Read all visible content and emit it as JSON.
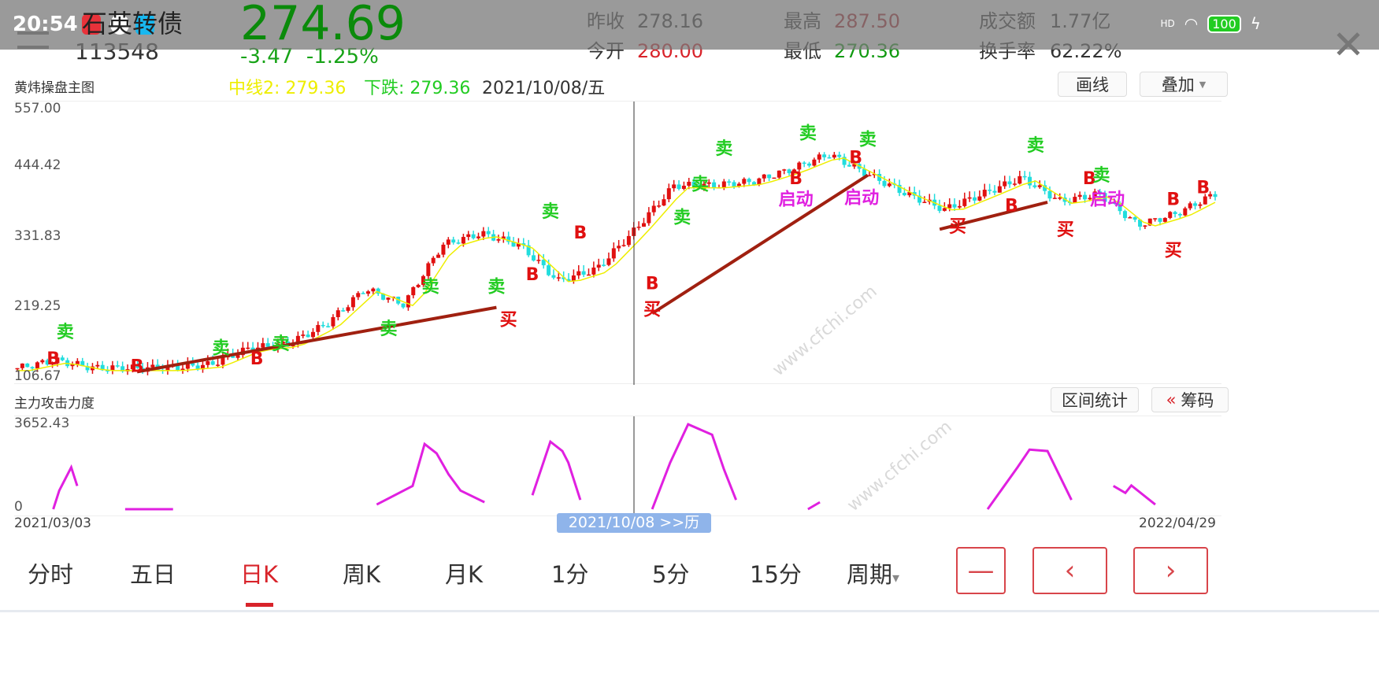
{
  "status_bar": {
    "time": "20:54",
    "battery": "100",
    "signal": "HD"
  },
  "header": {
    "name": "石英转债",
    "code": "113548",
    "price": "274.69",
    "change": "-3.47",
    "change_pct": "-1.25%",
    "stats": [
      {
        "label": "昨收",
        "value": "278.16",
        "color": "#333333"
      },
      {
        "label": "今开",
        "value": "280.00",
        "color": "#d8232a"
      },
      {
        "label": "最高",
        "value": "287.50",
        "color": "#b0202a"
      },
      {
        "label": "最低",
        "value": "270.36",
        "color": "#119a11"
      },
      {
        "label": "成交额",
        "value": "1.77亿",
        "color": "#333333"
      },
      {
        "label": "换手率",
        "value": "62.22%",
        "color": "#333333"
      }
    ]
  },
  "main_chart": {
    "title": "黄炜操盘主图",
    "legend_mid": "中线2: 279.36",
    "legend_down": "下跌: 279.36",
    "cursor_date": "2021/10/08/五",
    "draw_button": "画线",
    "overlay_button": "叠加",
    "y_ticks": [
      "557.00",
      "444.42",
      "331.83",
      "219.25",
      "106.67"
    ]
  },
  "sub_chart": {
    "title": "主力攻击力度",
    "stats_button": "区间统计",
    "chips_button": "筹码",
    "y_ticks": [
      "3652.43",
      "0"
    ]
  },
  "dates": {
    "start": "2021/03/03",
    "end": "2022/04/29",
    "cursor": "2021/10/08 >>历"
  },
  "tabs": [
    {
      "label": "分时"
    },
    {
      "label": "五日"
    },
    {
      "label": "日K",
      "active": true
    },
    {
      "label": "周K"
    },
    {
      "label": "月K"
    },
    {
      "label": "1分"
    },
    {
      "label": "5分"
    },
    {
      "label": "15分"
    },
    {
      "label": "周期"
    }
  ],
  "nav_buttons": [
    {
      "icon": "minus-icon",
      "label": "—"
    },
    {
      "icon": "chevron-left-icon",
      "label": "‹"
    },
    {
      "icon": "chevron-right-icon",
      "label": "›"
    }
  ],
  "watermark": "www.cfchi.com",
  "colors": {
    "up": "#e01010",
    "down": "#22dddd",
    "accent": "#d8232a",
    "signal_green": "#22cc22",
    "signal_magenta": "#e020e0",
    "trend": "#a02010"
  },
  "chart_data": {
    "type": "candlestick",
    "ylim": [
      106.67,
      557.0
    ],
    "x_range": [
      "2021/03/03",
      "2022/04/29"
    ],
    "cursor_date": "2021/10/08",
    "close_path": [
      124,
      137,
      124,
      124,
      124,
      130,
      157,
      164,
      197,
      256,
      230,
      329,
      348,
      329,
      269,
      289,
      355,
      428,
      428,
      434,
      454,
      480,
      447,
      414,
      388,
      414,
      441,
      401,
      414,
      362,
      381,
      414
    ],
    "markers": [
      {
        "t": 0.03,
        "p": 130,
        "text": "B"
      },
      {
        "t": 0.04,
        "p": 175,
        "text": "卖"
      },
      {
        "t": 0.1,
        "p": 118,
        "text": "B"
      },
      {
        "t": 0.2,
        "p": 130,
        "text": "B"
      },
      {
        "t": 0.17,
        "p": 148,
        "text": "卖"
      },
      {
        "t": 0.22,
        "p": 155,
        "text": "卖"
      },
      {
        "t": 0.31,
        "p": 180,
        "text": "卖"
      },
      {
        "t": 0.345,
        "p": 250,
        "text": "卖"
      },
      {
        "t": 0.4,
        "p": 250,
        "text": "卖"
      },
      {
        "t": 0.41,
        "p": 195,
        "text": "买"
      },
      {
        "t": 0.43,
        "p": 270,
        "text": "B"
      },
      {
        "t": 0.445,
        "p": 375,
        "text": "卖"
      },
      {
        "t": 0.47,
        "p": 340,
        "text": "B"
      },
      {
        "t": 0.53,
        "p": 212,
        "text": "买"
      },
      {
        "t": 0.53,
        "p": 255,
        "text": "B"
      },
      {
        "t": 0.555,
        "p": 365,
        "text": "卖"
      },
      {
        "t": 0.57,
        "p": 420,
        "text": "卖"
      },
      {
        "t": 0.59,
        "p": 480,
        "text": "卖"
      },
      {
        "t": 0.66,
        "p": 505,
        "text": "卖"
      },
      {
        "t": 0.65,
        "p": 430,
        "text": "B"
      },
      {
        "t": 0.65,
        "p": 395,
        "text": "启动"
      },
      {
        "t": 0.705,
        "p": 398,
        "text": "启动"
      },
      {
        "t": 0.71,
        "p": 495,
        "text": "卖"
      },
      {
        "t": 0.7,
        "p": 465,
        "text": "B"
      },
      {
        "t": 0.785,
        "p": 350,
        "text": "买"
      },
      {
        "t": 0.83,
        "p": 385,
        "text": "B"
      },
      {
        "t": 0.85,
        "p": 485,
        "text": "卖"
      },
      {
        "t": 0.875,
        "p": 345,
        "text": "买"
      },
      {
        "t": 0.895,
        "p": 430,
        "text": "B"
      },
      {
        "t": 0.91,
        "p": 395,
        "text": "启动"
      },
      {
        "t": 0.905,
        "p": 435,
        "text": "卖"
      },
      {
        "t": 0.965,
        "p": 310,
        "text": "买"
      },
      {
        "t": 0.965,
        "p": 395,
        "text": "B"
      },
      {
        "t": 0.99,
        "p": 415,
        "text": "B"
      }
    ],
    "trendlines": [
      [
        0.1,
        118,
        0.4,
        225
      ],
      [
        0.53,
        215,
        0.71,
        445
      ],
      [
        0.77,
        355,
        0.86,
        400
      ]
    ],
    "sub_series": {
      "ylim": [
        0,
        3652.43
      ],
      "x": [
        0.03,
        0.035,
        0.045,
        0.05,
        0.08,
        0.09,
        0.13,
        0.14,
        0.22,
        0.25,
        0.3,
        0.33,
        0.34,
        0.35,
        0.36,
        0.37,
        0.39,
        0.42,
        0.43,
        0.445,
        0.455,
        0.46,
        0.47,
        0.49,
        0.53,
        0.545,
        0.56,
        0.58,
        0.59,
        0.6,
        0.61,
        0.66,
        0.67,
        0.8,
        0.81,
        0.835,
        0.845,
        0.86,
        0.88,
        0.885,
        0.915,
        0.925,
        0.93,
        0.95,
        0.99,
        1.0
      ],
      "y": [
        0,
        800,
        1800,
        1000,
        null,
        0,
        0,
        null,
        0,
        null,
        200,
        1000,
        2800,
        2400,
        1500,
        800,
        300,
        null,
        600,
        2900,
        2500,
        2000,
        400,
        null,
        0,
        2000,
        3650,
        3200,
        1700,
        400,
        null,
        0,
        300,
        null,
        0,
        1800,
        2560,
        2500,
        400,
        null,
        1000,
        700,
        1020,
        200,
        null,
        3400
      ]
    }
  }
}
